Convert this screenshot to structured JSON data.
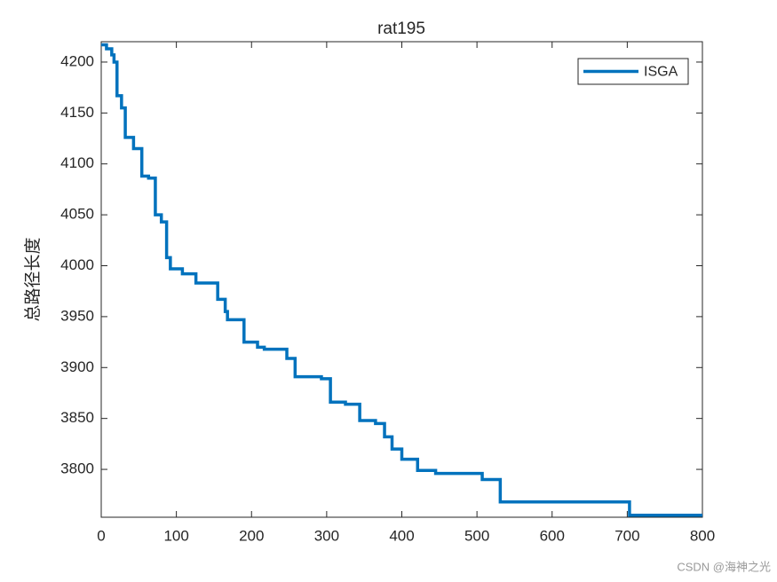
{
  "chart_data": {
    "type": "line",
    "title": "rat195",
    "y_label": "总路径长度",
    "x": [
      0,
      7,
      7,
      14,
      14,
      17,
      17,
      21,
      21,
      27,
      27,
      32,
      32,
      43,
      43,
      54,
      54,
      63,
      63,
      72,
      72,
      80,
      80,
      87,
      87,
      92,
      92,
      108,
      108,
      126,
      126,
      155,
      155,
      165,
      165,
      168,
      168,
      190,
      190,
      208,
      208,
      217,
      217,
      247,
      247,
      258,
      258,
      293,
      293,
      305,
      305,
      325,
      325,
      344,
      344,
      365,
      365,
      377,
      377,
      387,
      387,
      400,
      400,
      421,
      421,
      445,
      445,
      507,
      507,
      531,
      531,
      703,
      703,
      800
    ],
    "series": [
      {
        "name": "ISGA",
        "color": "#0072bd",
        "values": [
          4217,
          4217,
          4213,
          4213,
          4207,
          4207,
          4200,
          4200,
          4167,
          4167,
          4155,
          4155,
          4126,
          4126,
          4115,
          4115,
          4088,
          4088,
          4086,
          4086,
          4050,
          4050,
          4043,
          4043,
          4008,
          4008,
          3997,
          3997,
          3992,
          3992,
          3983,
          3983,
          3967,
          3967,
          3955,
          3955,
          3947,
          3947,
          3925,
          3925,
          3920,
          3920,
          3918,
          3918,
          3909,
          3909,
          3891,
          3891,
          3889,
          3889,
          3866,
          3866,
          3864,
          3864,
          3848,
          3848,
          3845,
          3845,
          3832,
          3832,
          3820,
          3820,
          3810,
          3810,
          3799,
          3799,
          3796,
          3796,
          3790,
          3790,
          3768,
          3768,
          3755,
          3755
        ]
      }
    ],
    "xlim": [
      0,
      800
    ],
    "xticks": [
      0,
      100,
      200,
      300,
      400,
      500,
      600,
      700,
      800
    ],
    "ylim": [
      3753,
      4220
    ],
    "yticks": [
      3800,
      3850,
      3900,
      3950,
      4000,
      4050,
      4100,
      4150,
      4200
    ],
    "legend": "top-right",
    "grid": false,
    "watermark": "CSDN @海神之光"
  }
}
